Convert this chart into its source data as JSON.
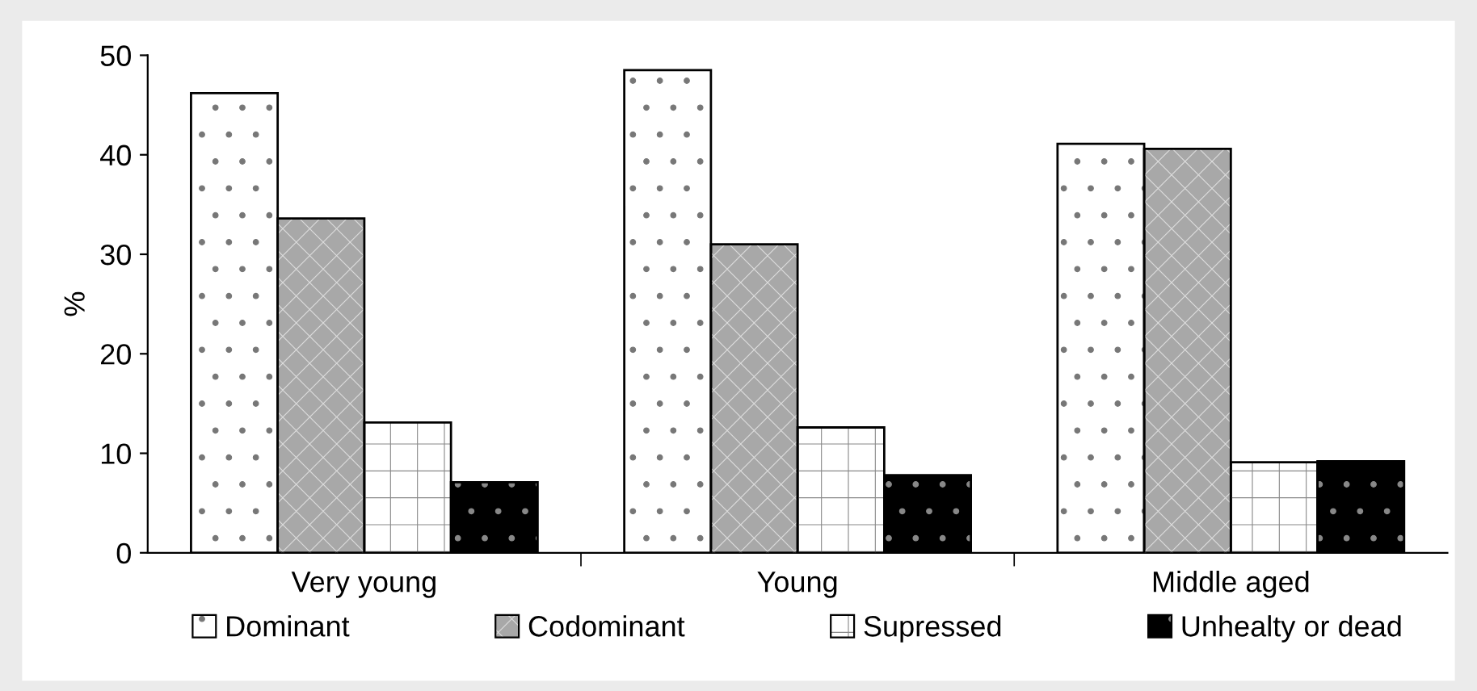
{
  "chart_data": {
    "type": "bar",
    "ylabel": "%",
    "categories": [
      "Very young",
      "Young",
      "Middle aged"
    ],
    "series": [
      {
        "name": "Dominant",
        "color": "#ffffff",
        "values": [
          46.2,
          48.5,
          41.1
        ]
      },
      {
        "name": "Codominant",
        "color": "#a8a8a8",
        "values": [
          33.6,
          31.0,
          40.6
        ]
      },
      {
        "name": "Supressed",
        "color": "#ffffff",
        "values": [
          13.1,
          12.6,
          9.1
        ]
      },
      {
        "name": "Unhealty or dead",
        "color": "#000000",
        "values": [
          7.1,
          7.8,
          9.2
        ]
      }
    ],
    "ylim": [
      0,
      50
    ],
    "yticks": [
      0,
      10,
      20,
      30,
      40,
      50
    ],
    "grid": false,
    "legend": "bottom"
  }
}
